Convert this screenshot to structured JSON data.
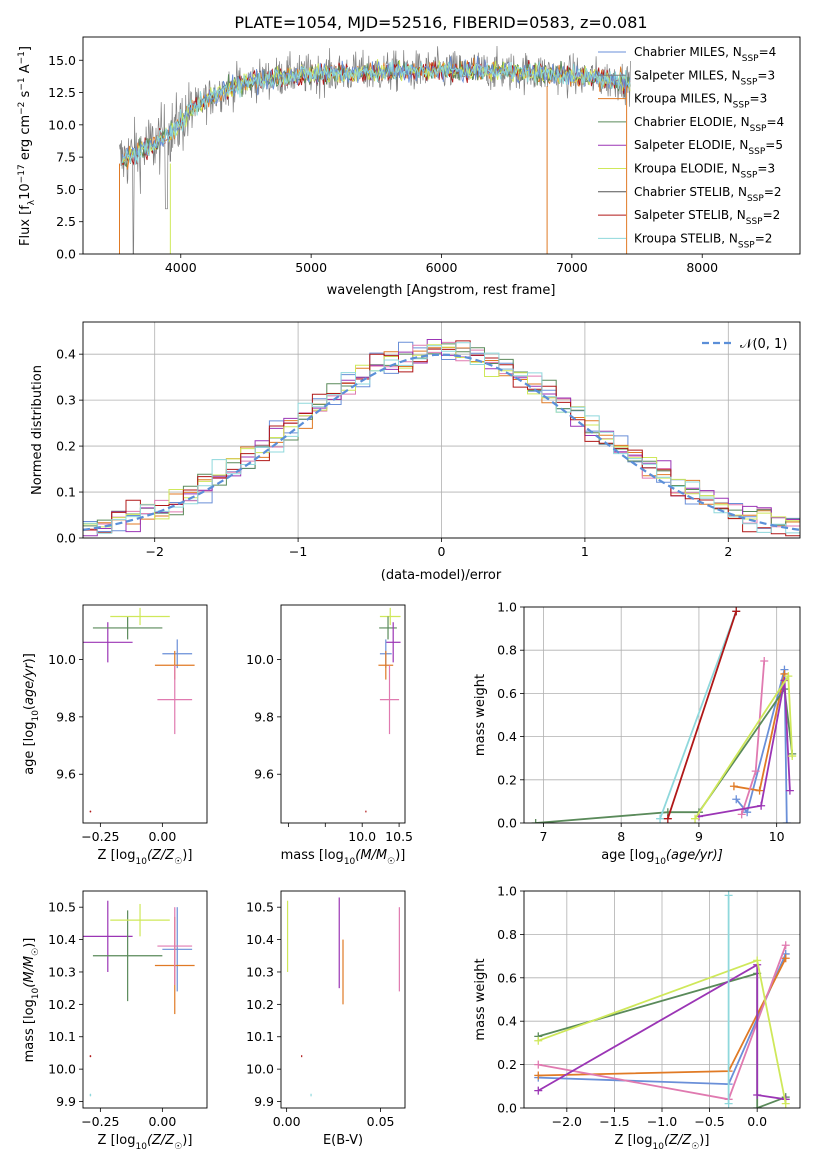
{
  "title": "PLATE=1054, MJD=52516, FIBERID=0583, z=0.081",
  "colors": {
    "Chabrier MILES": "#6a8fd8",
    "Salpeter MILES": "#7e7e7e",
    "Kroupa MILES": "#e07a25",
    "Chabrier ELODIE": "#5a8a5a",
    "Salpeter ELODIE": "#9b35b5",
    "Kroupa ELODIE": "#cfe85a",
    "Chabrier STELIB": "#555555",
    "Salpeter STELIB": "#b01818",
    "Kroupa STELIB": "#8fd8dc",
    "pink": "#e07ab0",
    "normal": "#5b8fd8"
  },
  "chart_data": [
    {
      "id": "spectrum",
      "type": "line",
      "xlabel": "wavelength [Angstrom, rest frame]",
      "ylabel_prefix": "Flux [f",
      "ylabel_lambda": "λ",
      "ylabel_mid": "10",
      "ylabel_exp1": "−17",
      "ylabel_rest": " erg cm",
      "ylabel_exp2": "−2",
      "ylabel_s": " s",
      "ylabel_exp3": "−1",
      "ylabel_A": " A",
      "ylabel_exp4": "−1",
      "ylabel_end": "]",
      "xlim": [
        3250,
        8750
      ],
      "ylim": [
        0,
        16.8
      ],
      "xticks": [
        4000,
        5000,
        6000,
        7000,
        8000
      ],
      "yticks": [
        0.0,
        2.5,
        5.0,
        7.5,
        10.0,
        12.5,
        15.0
      ],
      "grid": false,
      "legend_position": "right",
      "legend": [
        {
          "text": "Chabrier MILES, N",
          "sub": "SSP",
          "eq": "=4",
          "color_key": "Chabrier MILES"
        },
        {
          "text": "Salpeter MILES, N",
          "sub": "SSP",
          "eq": "=3",
          "color_key": "Salpeter MILES"
        },
        {
          "text": "Kroupa MILES, N",
          "sub": "SSP",
          "eq": "=3",
          "color_key": "Kroupa MILES"
        },
        {
          "text": "Chabrier ELODIE, N",
          "sub": "SSP",
          "eq": "=4",
          "color_key": "Chabrier ELODIE"
        },
        {
          "text": "Salpeter ELODIE, N",
          "sub": "SSP",
          "eq": "=5",
          "color_key": "Salpeter ELODIE"
        },
        {
          "text": "Kroupa ELODIE, N",
          "sub": "SSP",
          "eq": "=3",
          "color_key": "Kroupa ELODIE"
        },
        {
          "text": "Chabrier STELIB, N",
          "sub": "SSP",
          "eq": "=2",
          "color_key": "Chabrier STELIB"
        },
        {
          "text": "Salpeter STELIB, N",
          "sub": "SSP",
          "eq": "=2",
          "color_key": "Salpeter STELIB"
        },
        {
          "text": "Kroupa STELIB, N",
          "sub": "SSP",
          "eq": "=2",
          "color_key": "Kroupa STELIB"
        }
      ],
      "continuum": [
        [
          3530,
          7.2
        ],
        [
          3700,
          8.0
        ],
        [
          3850,
          8.9
        ],
        [
          3950,
          9.6
        ],
        [
          4050,
          10.8
        ],
        [
          4150,
          11.6
        ],
        [
          4300,
          12.6
        ],
        [
          4500,
          13.3
        ],
        [
          4800,
          13.8
        ],
        [
          5200,
          14.0
        ],
        [
          5600,
          14.1
        ],
        [
          6000,
          14.2
        ],
        [
          6400,
          14.2
        ],
        [
          6800,
          14.0
        ],
        [
          7200,
          13.6
        ],
        [
          7450,
          13.3
        ]
      ]
    },
    {
      "id": "residuals",
      "type": "step",
      "xlabel": "(data-model)/error",
      "ylabel": "Normed distribution",
      "xlim": [
        -2.5,
        2.5
      ],
      "ylim": [
        0,
        0.47
      ],
      "xticks": [
        -2,
        -1,
        0,
        1,
        2
      ],
      "xticklabels": [
        "−2",
        "−1",
        "0",
        "1",
        "2"
      ],
      "yticks": [
        0.0,
        0.1,
        0.2,
        0.3,
        0.4
      ],
      "grid": true,
      "legend_position": "top-right",
      "legend_label": "𝒩(0, 1)",
      "bin_width": 0.1
    },
    {
      "id": "age-vs-Z",
      "type": "errorbar",
      "xlabel_pre": "Z [log",
      "xlabel_sub": "10",
      "xlabel_post": "(Z/Z",
      "xlabel_sun": "☉",
      "xlabel_end": ")]",
      "ylabel_pre": "age  [log",
      "ylabel_sub": "10",
      "ylabel_post": "(age/yr)]",
      "xlim": [
        -0.32,
        0.18
      ],
      "ylim": [
        9.43,
        10.19
      ],
      "xticks": [
        -0.25,
        0.0
      ],
      "xticklabels": [
        "−0.25",
        "0.00"
      ],
      "yticks": [
        9.6,
        9.8,
        10.0
      ],
      "points": [
        {
          "x": -0.22,
          "xerr": 0.1,
          "y": 10.06,
          "yerr": 0.07,
          "color_key": "Salpeter ELODIE"
        },
        {
          "x": -0.14,
          "xerr": 0.14,
          "y": 10.11,
          "yerr": 0.04,
          "color_key": "Chabrier ELODIE"
        },
        {
          "x": -0.09,
          "xerr": 0.12,
          "y": 10.15,
          "yerr": 0.03,
          "color_key": "Kroupa ELODIE"
        },
        {
          "x": 0.06,
          "xerr": 0.06,
          "y": 10.02,
          "yerr": 0.05,
          "color_key": "Chabrier MILES"
        },
        {
          "x": 0.05,
          "xerr": 0.08,
          "y": 9.98,
          "yerr": 0.05,
          "color_key": "Kroupa MILES"
        },
        {
          "x": 0.05,
          "xerr": 0.07,
          "y": 9.86,
          "yerr": 0.12,
          "color_key": "pink"
        },
        {
          "x": -0.29,
          "xerr": 0.003,
          "y": 9.47,
          "yerr": 0.003,
          "color_key": "Salpeter STELIB"
        }
      ]
    },
    {
      "id": "age-vs-mass",
      "type": "errorbar",
      "xlabel_pre": "mass [log",
      "xlabel_sub": "10",
      "xlabel_post": "(M/M",
      "xlabel_sun": "☉",
      "xlabel_end": ")]",
      "xlim": [
        8.9,
        10.58
      ],
      "ylim": [
        9.43,
        10.19
      ],
      "xticks": [
        9.0,
        9.5,
        10.0,
        10.5
      ],
      "xticklabels": [
        "",
        "",
        "10.0",
        "10.5"
      ],
      "yticks": [
        9.6,
        9.8,
        10.0
      ],
      "points": [
        {
          "x": 10.38,
          "xerr": 0.14,
          "y": 10.15,
          "yerr": 0.03,
          "color_key": "Kroupa ELODIE"
        },
        {
          "x": 10.35,
          "xerr": 0.12,
          "y": 10.11,
          "yerr": 0.04,
          "color_key": "Chabrier ELODIE"
        },
        {
          "x": 10.42,
          "xerr": 0.1,
          "y": 10.06,
          "yerr": 0.07,
          "color_key": "Salpeter ELODIE"
        },
        {
          "x": 10.32,
          "xerr": 0.08,
          "y": 10.02,
          "yerr": 0.05,
          "color_key": "Chabrier MILES"
        },
        {
          "x": 10.32,
          "xerr": 0.1,
          "y": 9.98,
          "yerr": 0.05,
          "color_key": "Kroupa MILES"
        },
        {
          "x": 10.37,
          "xerr": 0.13,
          "y": 9.86,
          "yerr": 0.12,
          "color_key": "pink"
        },
        {
          "x": 10.05,
          "xerr": 0.003,
          "y": 9.47,
          "yerr": 0.003,
          "color_key": "Salpeter STELIB"
        }
      ]
    },
    {
      "id": "weight-vs-age",
      "type": "line",
      "xlabel_pre": "age  [log",
      "xlabel_sub": "10",
      "xlabel_post": "(age/yr)]",
      "ylabel": "mass weight",
      "xlim": [
        6.75,
        10.3
      ],
      "ylim": [
        0,
        1.0
      ],
      "xticks": [
        7,
        8,
        9,
        10
      ],
      "yticks": [
        0.0,
        0.2,
        0.4,
        0.6,
        0.8,
        1.0
      ],
      "grid": true,
      "series": [
        {
          "color_key": "Chabrier MILES",
          "x": [
            9.48,
            9.62,
            10.1,
            10.13
          ],
          "y": [
            0.11,
            0.05,
            0.71,
            0.0
          ]
        },
        {
          "color_key": "Kroupa MILES",
          "x": [
            9.45,
            9.78,
            10.1
          ],
          "y": [
            0.17,
            0.15,
            0.69
          ]
        },
        {
          "color_key": "pink",
          "x": [
            9.55,
            9.73,
            9.84
          ],
          "y": [
            0.04,
            0.24,
            0.75
          ]
        },
        {
          "color_key": "Chabrier ELODIE",
          "x": [
            6.9,
            8.6,
            9.0,
            10.1,
            10.2
          ],
          "y": [
            0.0,
            0.05,
            0.05,
            0.62,
            0.32
          ]
        },
        {
          "color_key": "Salpeter ELODIE",
          "x": [
            9.0,
            9.8,
            10.1,
            10.17
          ],
          "y": [
            0.03,
            0.08,
            0.66,
            0.15
          ]
        },
        {
          "color_key": "Kroupa ELODIE",
          "x": [
            8.95,
            10.15,
            10.2
          ],
          "y": [
            0.02,
            0.68,
            0.31
          ]
        },
        {
          "color_key": "Kroupa STELIB",
          "x": [
            8.5,
            9.48
          ],
          "y": [
            0.02,
            0.98
          ]
        },
        {
          "color_key": "Salpeter STELIB",
          "x": [
            8.6,
            9.48
          ],
          "y": [
            0.02,
            0.98
          ]
        }
      ]
    },
    {
      "id": "mass-vs-Z",
      "type": "errorbar",
      "xlabel_pre": "Z [log",
      "xlabel_sub": "10",
      "xlabel_post": "(Z/Z",
      "xlabel_sun": "☉",
      "xlabel_end": ")]",
      "ylabel_pre": "mass [log",
      "ylabel_sub": "10",
      "ylabel_post": "(M/M",
      "ylabel_sun": "☉",
      "ylabel_end": ")]",
      "xlim": [
        -0.32,
        0.18
      ],
      "ylim": [
        9.88,
        10.55
      ],
      "xticks": [
        -0.25,
        0.0
      ],
      "xticklabels": [
        "−0.25",
        "0.00"
      ],
      "yticks": [
        9.9,
        10.0,
        10.1,
        10.2,
        10.3,
        10.4,
        10.5
      ],
      "points": [
        {
          "x": -0.22,
          "xerr": 0.1,
          "y": 10.41,
          "yerr": 0.11,
          "color_key": "Salpeter ELODIE"
        },
        {
          "x": -0.14,
          "xerr": 0.14,
          "y": 10.35,
          "yerr": 0.14,
          "color_key": "Chabrier ELODIE"
        },
        {
          "x": -0.09,
          "xerr": 0.12,
          "y": 10.46,
          "yerr": 0.05,
          "color_key": "Kroupa ELODIE"
        },
        {
          "x": 0.06,
          "xerr": 0.06,
          "y": 10.37,
          "yerr": 0.13,
          "color_key": "Chabrier MILES"
        },
        {
          "x": 0.05,
          "xerr": 0.08,
          "y": 10.32,
          "yerr": 0.15,
          "color_key": "Kroupa MILES"
        },
        {
          "x": 0.05,
          "xerr": 0.07,
          "y": 10.38,
          "yerr": 0.12,
          "color_key": "pink"
        },
        {
          "x": -0.29,
          "xerr": 0.003,
          "y": 10.04,
          "yerr": 0.003,
          "color_key": "Salpeter STELIB"
        },
        {
          "x": -0.29,
          "xerr": 0.003,
          "y": 9.92,
          "yerr": 0.004,
          "color_key": "Kroupa STELIB"
        }
      ]
    },
    {
      "id": "mass-vs-EBV",
      "type": "errorbar",
      "xlabel": "E(B-V)",
      "xlim": [
        -0.003,
        0.063
      ],
      "ylim": [
        9.88,
        10.55
      ],
      "xticks": [
        0.0,
        0.05
      ],
      "xticklabels": [
        "0.00",
        "0.05"
      ],
      "yticks": [
        9.9,
        10.0,
        10.1,
        10.2,
        10.3,
        10.4,
        10.5
      ],
      "points": [
        {
          "x": 0.0005,
          "xerr": 0.0,
          "y": 10.41,
          "yerr": 0.11,
          "color_key": "Kroupa ELODIE"
        },
        {
          "x": 0.028,
          "xerr": 0.0,
          "y": 10.39,
          "yerr": 0.14,
          "color_key": "Salpeter ELODIE"
        },
        {
          "x": 0.03,
          "xerr": 0.0,
          "y": 10.3,
          "yerr": 0.1,
          "color_key": "Kroupa MILES"
        },
        {
          "x": 0.06,
          "xerr": 0.0,
          "y": 10.37,
          "yerr": 0.13,
          "color_key": "pink"
        },
        {
          "x": 0.008,
          "xerr": 0.0,
          "y": 10.04,
          "yerr": 0.003,
          "color_key": "Salpeter STELIB"
        },
        {
          "x": 0.013,
          "xerr": 0.0,
          "y": 9.92,
          "yerr": 0.004,
          "color_key": "Kroupa STELIB"
        }
      ]
    },
    {
      "id": "weight-vs-Z",
      "type": "line",
      "xlabel_pre": "Z [log",
      "xlabel_sub": "10",
      "xlabel_post": "(Z/Z",
      "xlabel_sun": "☉",
      "xlabel_end": ")]",
      "ylabel": "mass weight",
      "xlim": [
        -2.45,
        0.45
      ],
      "ylim": [
        0,
        1.0
      ],
      "xticks": [
        -2.0,
        -1.5,
        -1.0,
        -0.5,
        0.0
      ],
      "xticklabels": [
        "−2.0",
        "−1.5",
        "−1.0",
        "−0.5",
        "0.0"
      ],
      "yticks": [
        0.0,
        0.2,
        0.4,
        0.6,
        0.8,
        1.0
      ],
      "grid": true,
      "series": [
        {
          "color_key": "Chabrier MILES",
          "x": [
            -2.3,
            -0.3,
            0.3
          ],
          "y": [
            0.14,
            0.11,
            0.71
          ]
        },
        {
          "color_key": "Kroupa MILES",
          "x": [
            -2.3,
            -0.3,
            0.3
          ],
          "y": [
            0.15,
            0.17,
            0.69
          ]
        },
        {
          "color_key": "pink",
          "x": [
            -2.3,
            -0.3,
            0.3
          ],
          "y": [
            0.2,
            0.04,
            0.75
          ]
        },
        {
          "color_key": "Chabrier ELODIE",
          "x": [
            -2.3,
            0.0,
            0.0,
            0.3
          ],
          "y": [
            0.33,
            0.62,
            0.0,
            0.05
          ]
        },
        {
          "color_key": "Salpeter ELODIE",
          "x": [
            -2.3,
            0.0,
            0.0,
            0.3
          ],
          "y": [
            0.08,
            0.66,
            0.06,
            0.04
          ]
        },
        {
          "color_key": "Kroupa ELODIE",
          "x": [
            -2.3,
            0.0,
            0.3
          ],
          "y": [
            0.31,
            0.68,
            0.02
          ]
        },
        {
          "color_key": "Kroupa STELIB",
          "x": [
            -0.3,
            -0.3
          ],
          "y": [
            0.02,
            0.98
          ]
        }
      ]
    }
  ]
}
